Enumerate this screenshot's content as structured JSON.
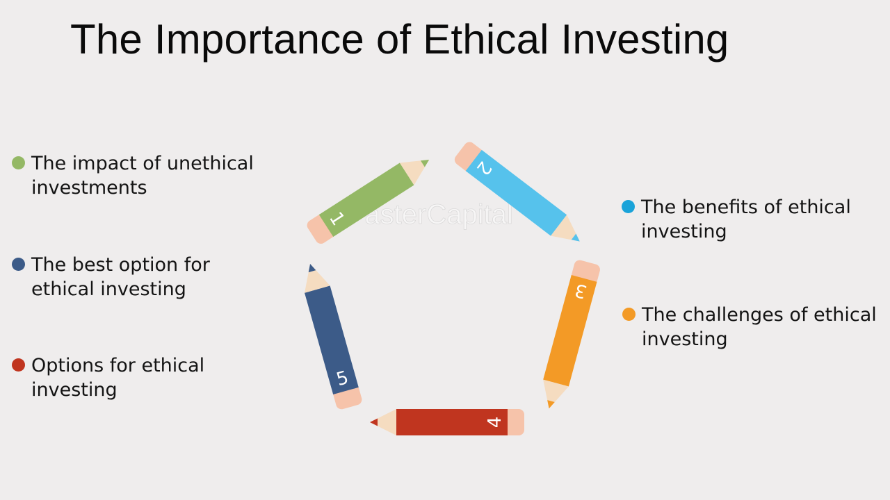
{
  "title": "The Importance of Ethical Investing",
  "watermark": "FasterCapital",
  "items": [
    {
      "number": "1",
      "label": "The impact of unethical investments",
      "color": "#94b865"
    },
    {
      "number": "2",
      "label": "The benefits of ethical investing",
      "color": "#56c2ec"
    },
    {
      "number": "3",
      "label": "The challenges of ethical investing",
      "color": "#f39a26"
    },
    {
      "number": "4",
      "label": "Options for ethical investing",
      "color": "#c0351f"
    },
    {
      "number": "5",
      "label": "The best option for ethical investing",
      "color": "#3c5b88"
    }
  ],
  "dot_colors": {
    "item1": "#94b865",
    "item2": "#1aa3d9",
    "item3": "#f39a26",
    "item4": "#c0351f",
    "item5": "#3c5b88"
  },
  "pencil_colors": {
    "eraser": "#f6c3aa",
    "wood": "#f5dcc0"
  }
}
